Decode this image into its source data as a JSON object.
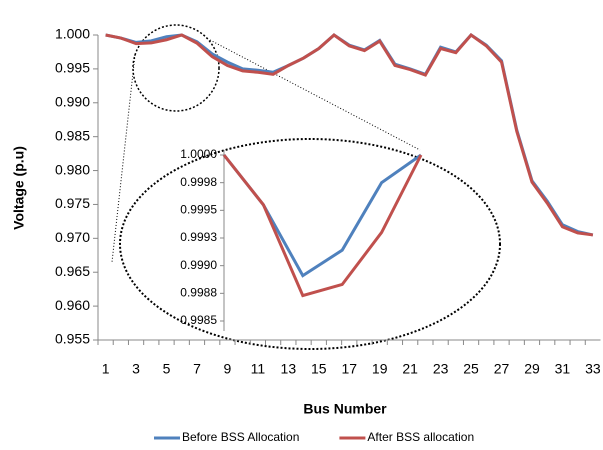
{
  "chart_data": [
    {
      "type": "line",
      "y_label": "Voltage (p.u)",
      "x_label": "Bus Number",
      "categories": [
        1,
        null,
        3,
        null,
        5,
        null,
        7,
        null,
        9,
        null,
        11,
        null,
        13,
        null,
        15,
        null,
        17,
        null,
        19,
        null,
        21,
        null,
        23,
        null,
        25,
        null,
        27,
        null,
        29,
        null,
        31,
        null,
        33
      ],
      "series": [
        {
          "name": "Before BSS Allocation",
          "color": "#4f81bd",
          "values": [
            1.0,
            0.99955,
            0.99891,
            0.99914,
            0.99975,
            1.0,
            0.999,
            0.9972,
            0.996,
            0.995,
            0.9948,
            0.9945,
            0.9955,
            0.9966,
            0.998,
            1.0,
            0.9985,
            0.9978,
            0.9992,
            0.9957,
            0.995,
            0.9942,
            0.9982,
            0.9975,
            1.0,
            0.9985,
            0.9962,
            0.986,
            0.9785,
            0.9755,
            0.972,
            0.971,
            0.9705
          ]
        },
        {
          "name": "After BSS allocation",
          "color": "#c0504d",
          "values": [
            1.0,
            0.99955,
            0.99873,
            0.99883,
            0.9993,
            1.0,
            0.9988,
            0.9968,
            0.9955,
            0.9947,
            0.9945,
            0.9942,
            0.9955,
            0.9966,
            0.998,
            1.0,
            0.9984,
            0.9977,
            0.9991,
            0.9955,
            0.9949,
            0.9941,
            0.998,
            0.9974,
            1.0,
            0.9984,
            0.996,
            0.9858,
            0.9783,
            0.9752,
            0.9717,
            0.9708,
            0.9705
          ]
        }
      ],
      "ylim": [
        0.955,
        1.0
      ],
      "yticks": [
        0.955,
        0.96,
        0.965,
        0.97,
        0.975,
        0.98,
        0.985,
        0.99,
        0.995,
        1.0
      ],
      "ytick_labels": [
        "0.955",
        "0.960",
        "0.965",
        "0.970",
        "0.975",
        "0.980",
        "0.985",
        "0.990",
        "0.995",
        "1.000"
      ],
      "legend": "bottom"
    },
    {
      "type": "line",
      "series": [
        {
          "name": "Before BSS Allocation",
          "color": "#4f81bd",
          "values": [
            1.0,
            0.99955,
            0.99891,
            0.99914,
            0.99975,
            1.0
          ]
        },
        {
          "name": "After BSS allocation",
          "color": "#c0504d",
          "values": [
            1.0,
            0.99955,
            0.99873,
            0.99883,
            0.9993,
            1.0
          ]
        }
      ],
      "ylim": [
        0.9985,
        1.0
      ],
      "yticks": [
        {
          "value": 0.9985,
          "label": "0.9985"
        },
        {
          "value": 0.99875,
          "label": "0.9988"
        },
        {
          "value": 0.999,
          "label": "0.9990"
        },
        {
          "value": 0.99925,
          "label": "0.9993"
        },
        {
          "value": 0.9995,
          "label": "0.9995"
        },
        {
          "value": 0.99975,
          "label": "0.9998"
        },
        {
          "value": 1.0,
          "label": "1.0000"
        }
      ]
    }
  ]
}
